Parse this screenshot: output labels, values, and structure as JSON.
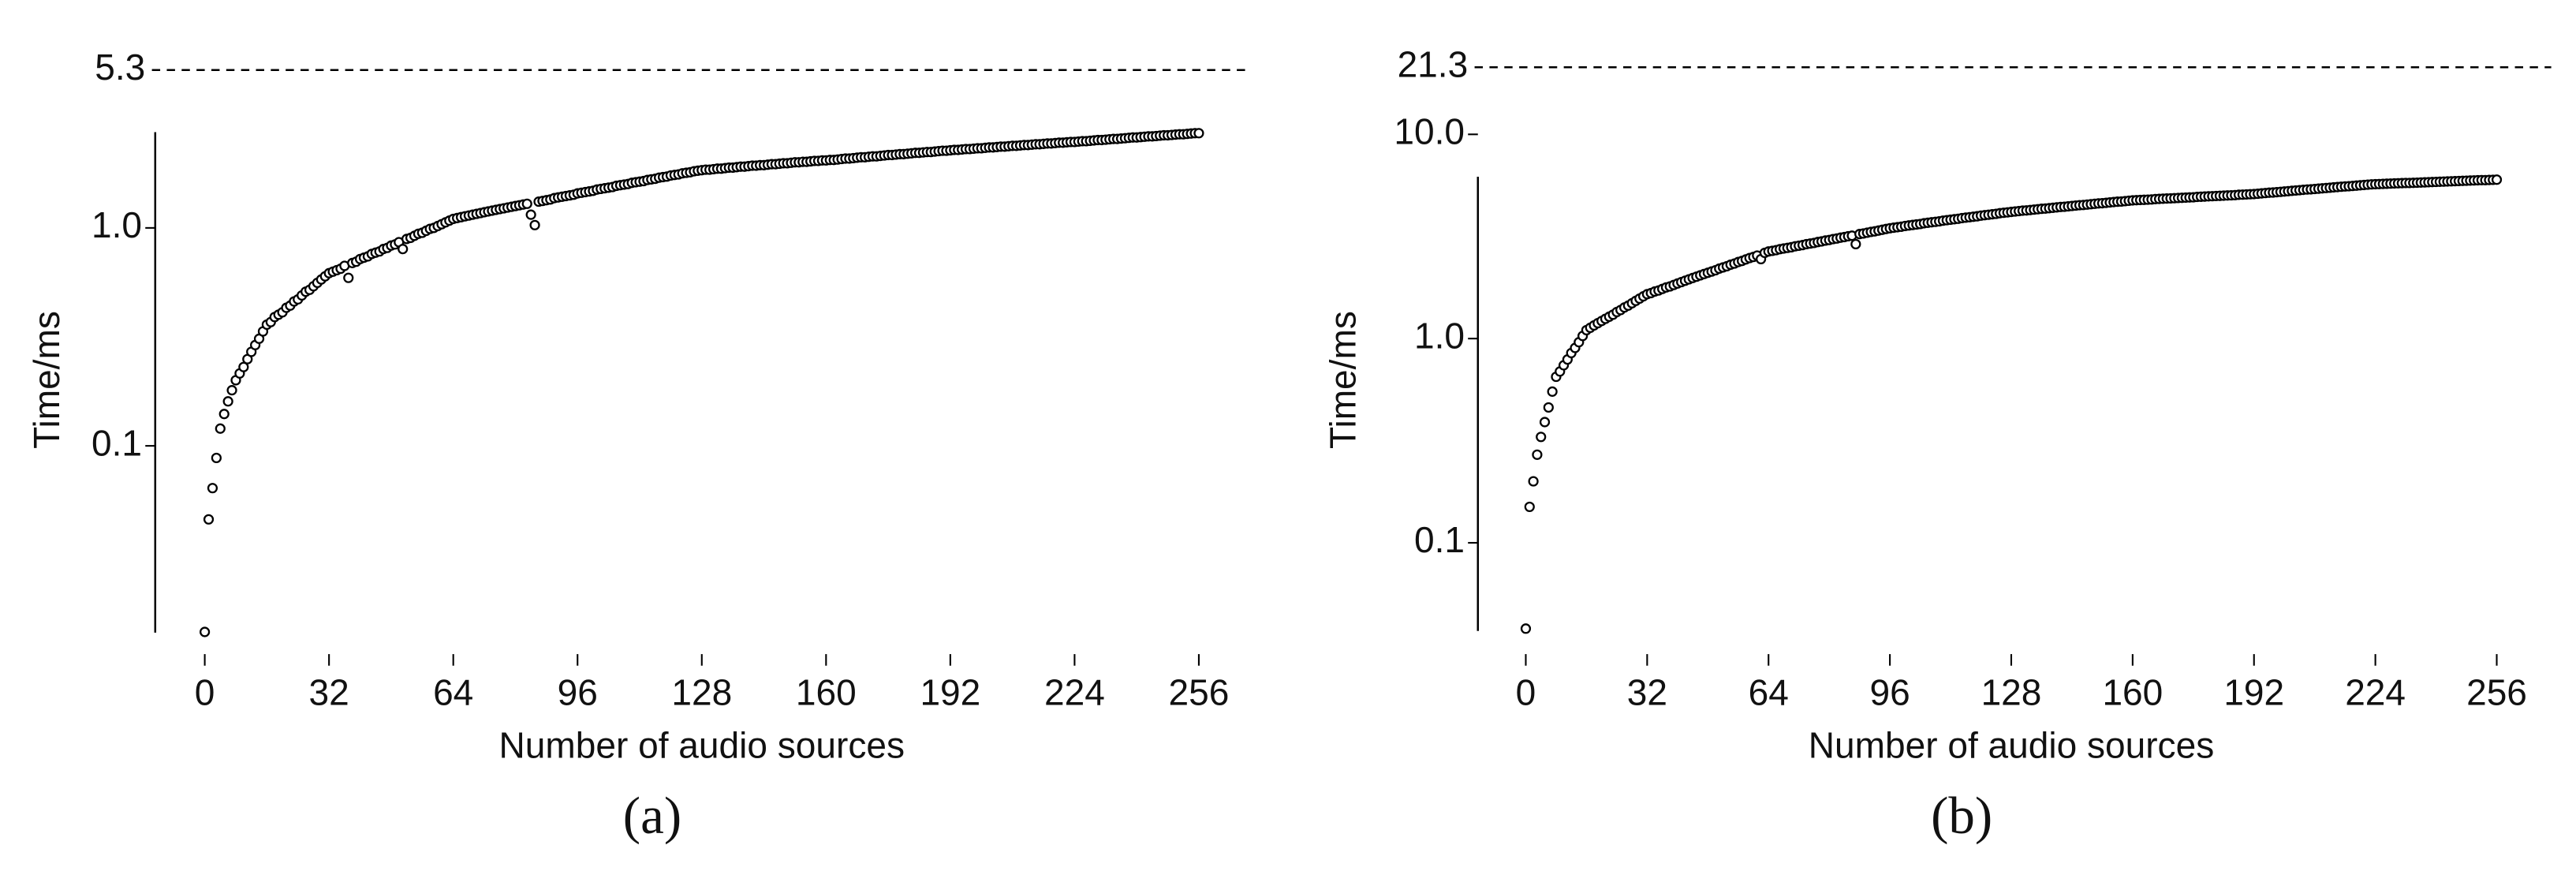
{
  "chart_data": [
    {
      "type": "scatter",
      "panel_label": "(a)",
      "xlabel": "Number of audio sources",
      "ylabel": "Time/ms",
      "log_y": true,
      "color": "#000000",
      "reference_line": 5.3,
      "xlim": [
        0,
        256
      ],
      "xticks": [
        0,
        32,
        64,
        96,
        128,
        160,
        192,
        224,
        256
      ],
      "ylim": [
        0.0139,
        2.75
      ],
      "yticks": [
        {
          "value": 0.1,
          "label": "0.1"
        },
        {
          "value": 1,
          "label": "1.0"
        }
      ],
      "x": [
        0,
        1,
        2,
        3,
        4,
        5,
        6,
        7,
        8,
        9,
        10,
        11,
        12,
        13,
        14,
        15,
        16,
        17,
        18,
        19,
        20,
        21,
        22,
        23,
        24,
        25,
        26,
        27,
        28,
        29,
        30,
        31,
        32,
        33,
        34,
        35,
        36,
        37,
        38,
        39,
        40,
        41,
        42,
        43,
        44,
        45,
        46,
        47,
        48,
        49,
        50,
        51,
        52,
        53,
        54,
        55,
        56,
        57,
        58,
        59,
        60,
        61,
        62,
        63,
        64,
        65,
        66,
        67,
        68,
        69,
        70,
        71,
        72,
        73,
        74,
        75,
        76,
        77,
        78,
        79,
        80,
        81,
        82,
        83,
        84,
        85,
        86,
        87,
        88,
        89,
        90,
        91,
        92,
        93,
        94,
        95,
        96,
        97,
        98,
        99,
        100,
        101,
        102,
        103,
        104,
        105,
        106,
        107,
        108,
        109,
        110,
        111,
        112,
        113,
        114,
        115,
        116,
        117,
        118,
        119,
        120,
        121,
        122,
        123,
        124,
        125,
        126,
        127,
        128,
        129,
        130,
        131,
        132,
        133,
        134,
        135,
        136,
        137,
        138,
        139,
        140,
        141,
        142,
        143,
        144,
        145,
        146,
        147,
        148,
        149,
        150,
        151,
        152,
        153,
        154,
        155,
        156,
        157,
        158,
        159,
        160,
        161,
        162,
        163,
        164,
        165,
        166,
        167,
        168,
        169,
        170,
        171,
        172,
        173,
        174,
        175,
        176,
        177,
        178,
        179,
        180,
        181,
        182,
        183,
        184,
        185,
        186,
        187,
        188,
        189,
        190,
        191,
        192,
        193,
        194,
        195,
        196,
        197,
        198,
        199,
        200,
        201,
        202,
        203,
        204,
        205,
        206,
        207,
        208,
        209,
        210,
        211,
        212,
        213,
        214,
        215,
        216,
        217,
        218,
        219,
        220,
        221,
        222,
        223,
        224,
        225,
        226,
        227,
        228,
        229,
        230,
        231,
        232,
        233,
        234,
        235,
        236,
        237,
        238,
        239,
        240,
        241,
        242,
        243,
        244,
        245,
        246,
        247,
        248,
        249,
        250,
        251,
        252,
        253,
        254,
        255,
        256
      ],
      "values": [
        0.014,
        0.046,
        0.064,
        0.088,
        0.12,
        0.14,
        0.16,
        0.18,
        0.2,
        0.215,
        0.23,
        0.25,
        0.27,
        0.29,
        0.31,
        0.335,
        0.36,
        0.37,
        0.39,
        0.4,
        0.41,
        0.43,
        0.44,
        0.46,
        0.47,
        0.49,
        0.51,
        0.52,
        0.54,
        0.56,
        0.58,
        0.6,
        0.62,
        0.63,
        0.64,
        0.65,
        0.67,
        0.59,
        0.69,
        0.7,
        0.72,
        0.73,
        0.74,
        0.76,
        0.77,
        0.78,
        0.8,
        0.81,
        0.83,
        0.84,
        0.86,
        0.8,
        0.89,
        0.9,
        0.92,
        0.94,
        0.95,
        0.97,
        0.99,
        1.0,
        1.02,
        1.04,
        1.06,
        1.08,
        1.1,
        1.11,
        1.12,
        1.13,
        1.14,
        1.15,
        1.16,
        1.17,
        1.18,
        1.19,
        1.2,
        1.21,
        1.22,
        1.23,
        1.24,
        1.25,
        1.26,
        1.27,
        1.28,
        1.29,
        1.15,
        1.03,
        1.32,
        1.33,
        1.34,
        1.35,
        1.37,
        1.38,
        1.39,
        1.4,
        1.41,
        1.42,
        1.44,
        1.45,
        1.46,
        1.47,
        1.48,
        1.5,
        1.51,
        1.52,
        1.53,
        1.54,
        1.56,
        1.57,
        1.58,
        1.59,
        1.61,
        1.62,
        1.63,
        1.64,
        1.66,
        1.67,
        1.68,
        1.7,
        1.71,
        1.72,
        1.74,
        1.75,
        1.76,
        1.78,
        1.79,
        1.8,
        1.82,
        1.83,
        1.84,
        1.85,
        1.85,
        1.86,
        1.87,
        1.87,
        1.88,
        1.89,
        1.89,
        1.9,
        1.91,
        1.91,
        1.92,
        1.93,
        1.93,
        1.94,
        1.94,
        1.95,
        1.96,
        1.96,
        1.97,
        1.98,
        1.98,
        1.99,
        2.0,
        2.0,
        2.01,
        2.01,
        2.02,
        2.03,
        2.03,
        2.04,
        2.04,
        2.05,
        2.05,
        2.06,
        2.07,
        2.08,
        2.08,
        2.09,
        2.1,
        2.11,
        2.11,
        2.12,
        2.13,
        2.13,
        2.14,
        2.15,
        2.16,
        2.16,
        2.17,
        2.18,
        2.18,
        2.19,
        2.2,
        2.21,
        2.21,
        2.22,
        2.23,
        2.23,
        2.24,
        2.25,
        2.26,
        2.26,
        2.27,
        2.28,
        2.28,
        2.29,
        2.3,
        2.3,
        2.31,
        2.32,
        2.32,
        2.33,
        2.34,
        2.34,
        2.35,
        2.36,
        2.36,
        2.37,
        2.38,
        2.38,
        2.39,
        2.4,
        2.4,
        2.41,
        2.42,
        2.42,
        2.43,
        2.44,
        2.44,
        2.45,
        2.46,
        2.46,
        2.47,
        2.48,
        2.48,
        2.49,
        2.5,
        2.5,
        2.51,
        2.52,
        2.53,
        2.53,
        2.54,
        2.55,
        2.56,
        2.56,
        2.57,
        2.58,
        2.59,
        2.6,
        2.6,
        2.61,
        2.62,
        2.63,
        2.63,
        2.64,
        2.65,
        2.66,
        2.66,
        2.67,
        2.68,
        2.69,
        2.69,
        2.7,
        2.71,
        2.72,
        2.72
      ]
    },
    {
      "type": "scatter",
      "panel_label": "(b)",
      "xlabel": "Number of audio sources",
      "ylabel": "Time/ms",
      "log_y": true,
      "color": "#000000",
      "reference_line": 21.3,
      "xlim": [
        0,
        256
      ],
      "xticks": [
        0,
        32,
        64,
        96,
        128,
        160,
        192,
        224,
        256
      ],
      "ylim": [
        0.037,
        6.2
      ],
      "yticks": [
        {
          "value": 0.1,
          "label": "0.1"
        },
        {
          "value": 1,
          "label": "1.0"
        },
        {
          "value": 10,
          "label": "10.0"
        }
      ],
      "x": [
        0,
        1,
        2,
        3,
        4,
        5,
        6,
        7,
        8,
        9,
        10,
        11,
        12,
        13,
        14,
        15,
        16,
        17,
        18,
        19,
        20,
        21,
        22,
        23,
        24,
        25,
        26,
        27,
        28,
        29,
        30,
        31,
        32,
        33,
        34,
        35,
        36,
        37,
        38,
        39,
        40,
        41,
        42,
        43,
        44,
        45,
        46,
        47,
        48,
        49,
        50,
        51,
        52,
        53,
        54,
        55,
        56,
        57,
        58,
        59,
        60,
        61,
        62,
        63,
        64,
        65,
        66,
        67,
        68,
        69,
        70,
        71,
        72,
        73,
        74,
        75,
        76,
        77,
        78,
        79,
        80,
        81,
        82,
        83,
        84,
        85,
        86,
        87,
        88,
        89,
        90,
        91,
        92,
        93,
        94,
        95,
        96,
        97,
        98,
        99,
        100,
        101,
        102,
        103,
        104,
        105,
        106,
        107,
        108,
        109,
        110,
        111,
        112,
        113,
        114,
        115,
        116,
        117,
        118,
        119,
        120,
        121,
        122,
        123,
        124,
        125,
        126,
        127,
        128,
        129,
        130,
        131,
        132,
        133,
        134,
        135,
        136,
        137,
        138,
        139,
        140,
        141,
        142,
        143,
        144,
        145,
        146,
        147,
        148,
        149,
        150,
        151,
        152,
        153,
        154,
        155,
        156,
        157,
        158,
        159,
        160,
        161,
        162,
        163,
        164,
        165,
        166,
        167,
        168,
        169,
        170,
        171,
        172,
        173,
        174,
        175,
        176,
        177,
        178,
        179,
        180,
        181,
        182,
        183,
        184,
        185,
        186,
        187,
        188,
        189,
        190,
        191,
        192,
        193,
        194,
        195,
        196,
        197,
        198,
        199,
        200,
        201,
        202,
        203,
        204,
        205,
        206,
        207,
        208,
        209,
        210,
        211,
        212,
        213,
        214,
        215,
        216,
        217,
        218,
        219,
        220,
        221,
        222,
        223,
        224,
        225,
        226,
        227,
        228,
        229,
        230,
        231,
        232,
        233,
        234,
        235,
        236,
        237,
        238,
        239,
        240,
        241,
        242,
        243,
        244,
        245,
        246,
        247,
        248,
        249,
        250,
        251,
        252,
        253,
        254,
        255,
        256
      ],
      "values": [
        0.038,
        0.15,
        0.2,
        0.27,
        0.33,
        0.39,
        0.46,
        0.55,
        0.65,
        0.69,
        0.74,
        0.79,
        0.85,
        0.9,
        0.96,
        1.03,
        1.1,
        1.13,
        1.16,
        1.19,
        1.22,
        1.25,
        1.28,
        1.31,
        1.35,
        1.38,
        1.42,
        1.45,
        1.49,
        1.53,
        1.57,
        1.61,
        1.65,
        1.67,
        1.7,
        1.72,
        1.75,
        1.78,
        1.8,
        1.83,
        1.86,
        1.89,
        1.92,
        1.95,
        1.98,
        2.01,
        2.04,
        2.07,
        2.1,
        2.13,
        2.16,
        2.2,
        2.23,
        2.26,
        2.3,
        2.33,
        2.37,
        2.4,
        2.44,
        2.48,
        2.51,
        2.55,
        2.45,
        2.63,
        2.67,
        2.69,
        2.71,
        2.74,
        2.76,
        2.78,
        2.8,
        2.83,
        2.85,
        2.87,
        2.9,
        2.92,
        2.94,
        2.97,
        2.99,
        3.02,
        3.04,
        3.07,
        3.09,
        3.12,
        3.14,
        3.17,
        3.19,
        2.9,
        3.25,
        3.27,
        3.3,
        3.33,
        3.35,
        3.38,
        3.41,
        3.44,
        3.47,
        3.49,
        3.51,
        3.53,
        3.56,
        3.58,
        3.6,
        3.62,
        3.64,
        3.67,
        3.69,
        3.71,
        3.73,
        3.75,
        3.78,
        3.8,
        3.82,
        3.84,
        3.86,
        3.89,
        3.91,
        3.93,
        3.95,
        3.97,
        4.0,
        4.02,
        4.04,
        4.06,
        4.08,
        4.11,
        4.13,
        4.15,
        4.17,
        4.19,
        4.21,
        4.23,
        4.24,
        4.26,
        4.28,
        4.3,
        4.32,
        4.33,
        4.35,
        4.37,
        4.39,
        4.41,
        4.42,
        4.44,
        4.46,
        4.48,
        4.5,
        4.51,
        4.53,
        4.55,
        4.57,
        4.59,
        4.6,
        4.62,
        4.64,
        4.66,
        4.68,
        4.69,
        4.71,
        4.73,
        4.75,
        4.76,
        4.77,
        4.78,
        4.79,
        4.8,
        4.82,
        4.83,
        4.84,
        4.85,
        4.86,
        4.87,
        4.88,
        4.89,
        4.9,
        4.91,
        4.92,
        4.94,
        4.95,
        4.96,
        4.97,
        4.98,
        4.99,
        5.0,
        5.01,
        5.02,
        5.03,
        5.04,
        5.06,
        5.07,
        5.08,
        5.09,
        5.1,
        5.12,
        5.14,
        5.16,
        5.18,
        5.19,
        5.21,
        5.23,
        5.25,
        5.27,
        5.29,
        5.31,
        5.33,
        5.35,
        5.37,
        5.38,
        5.4,
        5.42,
        5.44,
        5.46,
        5.48,
        5.5,
        5.52,
        5.54,
        5.56,
        5.57,
        5.59,
        5.61,
        5.63,
        5.65,
        5.67,
        5.69,
        5.7,
        5.71,
        5.72,
        5.73,
        5.74,
        5.75,
        5.76,
        5.77,
        5.78,
        5.78,
        5.79,
        5.8,
        5.81,
        5.82,
        5.83,
        5.84,
        5.85,
        5.86,
        5.87,
        5.88,
        5.89,
        5.9,
        5.91,
        5.92,
        5.93,
        5.94,
        5.95,
        5.96,
        5.97,
        5.97,
        5.98,
        5.99,
        6.0
      ]
    }
  ]
}
